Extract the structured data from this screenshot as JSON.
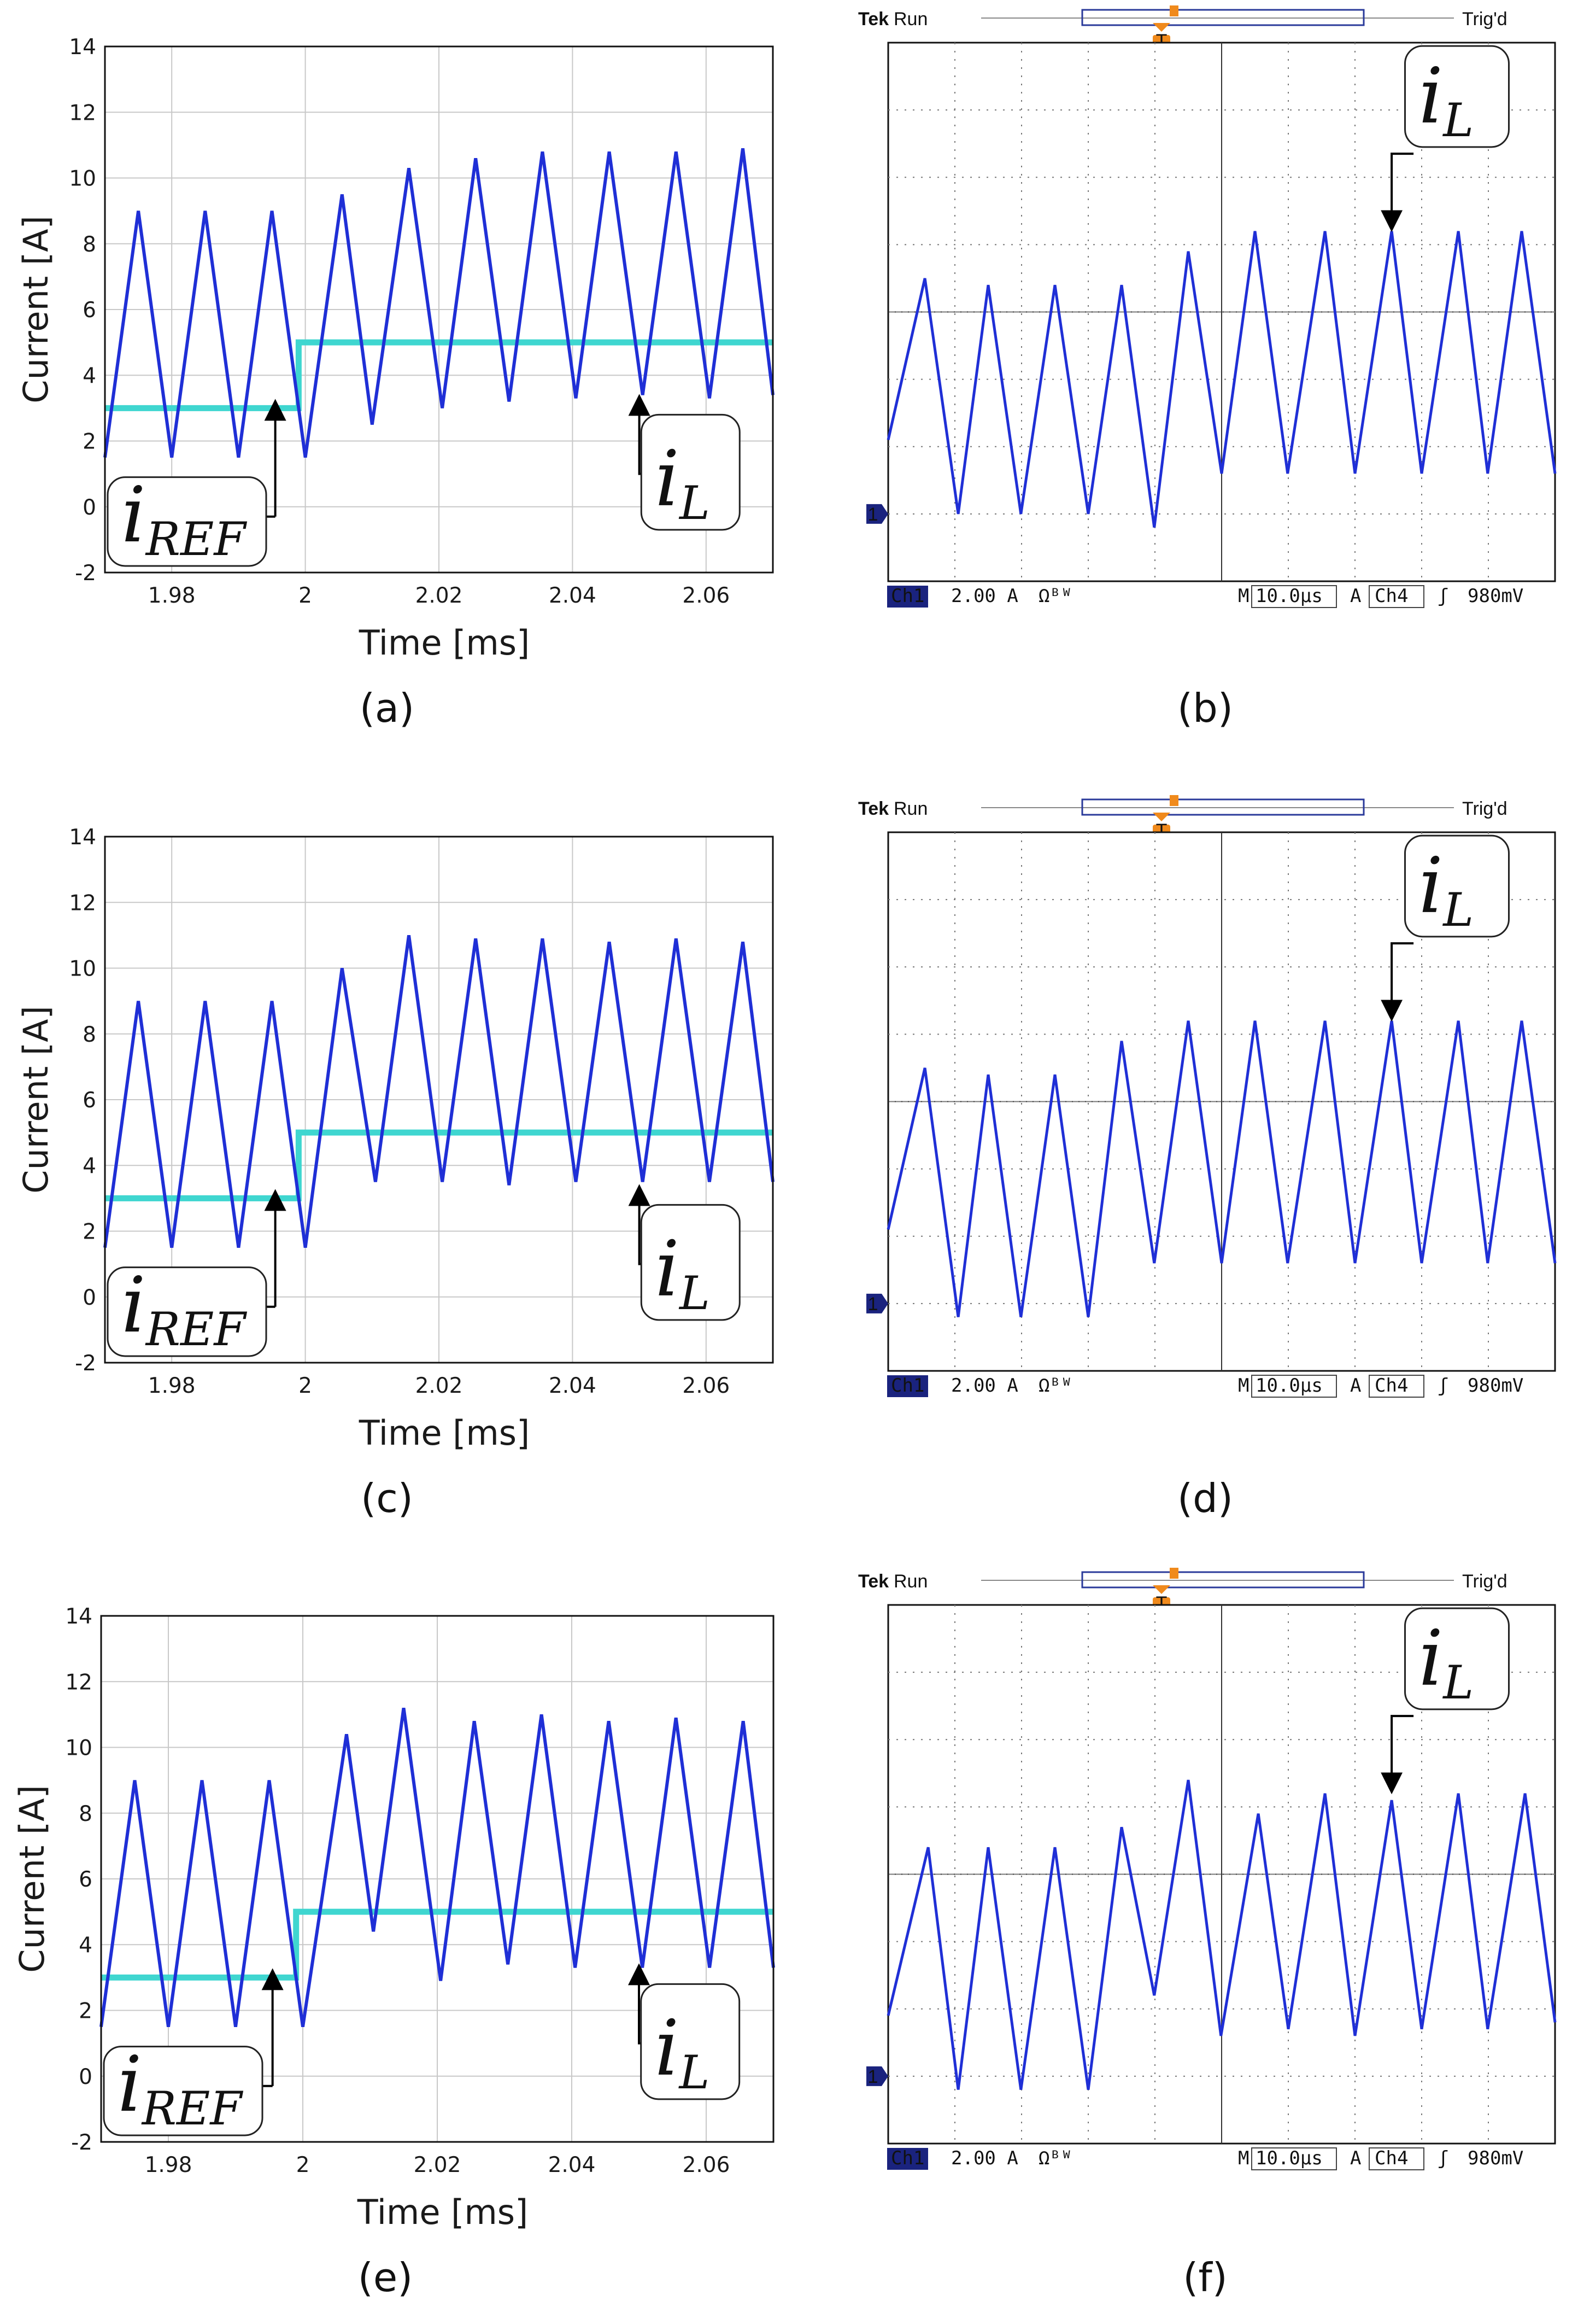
{
  "colors": {
    "il": "#1f2fd6",
    "iref": "#3fd6d0",
    "grid": "#c8c8c8",
    "scope_blue": "#1f2fd6",
    "trigger": "#f08a1c",
    "scope_green": "#1f9a1f"
  },
  "captions": [
    "(a)",
    "(b)",
    "(c)",
    "(d)",
    "(e)",
    "(f)"
  ],
  "labels": {
    "il_main": "i",
    "il_sub": "L",
    "iref_main": "i",
    "iref_sub": "REF"
  },
  "scope": {
    "brand": "Tek",
    "state": "Run",
    "trig_status": "Trig'd",
    "trig_marker": "T",
    "ch1_tag": "Ch1",
    "ch1_scale": "2.00 A",
    "ch1_suffix": "Ωᴮᵂ",
    "timebase_prefix": "M",
    "timebase": "10.0µs",
    "trig_ch_prefix": "A",
    "trig_source": "Ch4",
    "trig_slope": "ʃ",
    "trig_level": "980mV",
    "ground_marker": "1"
  },
  "chart_data": [
    {
      "id": "a",
      "type": "line",
      "xlabel": "Time [ms]",
      "ylabel": "Current [A]",
      "xlim": [
        1.97,
        2.07
      ],
      "ylim": [
        -2,
        14
      ],
      "grid": true,
      "xticks": [
        1.98,
        2,
        2.02,
        2.04,
        2.06
      ],
      "xtick_labels": [
        "1.98",
        "2",
        "2.02",
        "2.04",
        "2.06"
      ],
      "yticks": [
        -2,
        0,
        2,
        4,
        6,
        8,
        10,
        12,
        14
      ],
      "ytick_labels": [
        "-2",
        "0",
        "2",
        "4",
        "6",
        "8",
        "10",
        "12",
        "14"
      ],
      "series": [
        {
          "name": "iL",
          "x": [
            1.97,
            1.975,
            1.98,
            1.985,
            1.99,
            1.995,
            2.0,
            2.0055,
            2.01,
            2.0155,
            2.0205,
            2.0255,
            2.0305,
            2.0355,
            2.0405,
            2.0455,
            2.0505,
            2.0555,
            2.0605,
            2.0655,
            2.07
          ],
          "y": [
            1.5,
            9.0,
            1.5,
            9.0,
            1.5,
            9.0,
            1.5,
            9.5,
            2.5,
            10.3,
            3.0,
            10.6,
            3.2,
            10.8,
            3.3,
            10.8,
            3.4,
            10.8,
            3.3,
            10.9,
            3.4
          ]
        },
        {
          "name": "iREF",
          "x": [
            1.97,
            1.999,
            1.999,
            2.07
          ],
          "y": [
            3,
            3,
            5,
            5
          ]
        }
      ]
    },
    {
      "id": "b",
      "type": "line",
      "instrument": "oscilloscope",
      "ylim_divs": [
        0,
        8
      ],
      "xlim_divs": [
        0,
        10
      ],
      "series": [
        {
          "name": "iL",
          "x": [
            0,
            0.55,
            1.05,
            1.5,
            1.99,
            2.5,
            3.0,
            3.5,
            3.99,
            4.5,
            5.0,
            5.5,
            5.99,
            6.55,
            7.0,
            7.55,
            8.0,
            8.55,
            8.99,
            9.5,
            10.0
          ],
          "y": [
            2.1,
            4.5,
            1.0,
            4.4,
            1.0,
            4.4,
            1.0,
            4.4,
            0.8,
            4.9,
            1.6,
            5.2,
            1.6,
            5.2,
            1.6,
            5.2,
            1.6,
            5.2,
            1.6,
            5.2,
            1.6
          ]
        }
      ]
    },
    {
      "id": "c",
      "type": "line",
      "xlabel": "Time [ms]",
      "ylabel": "Current [A]",
      "xlim": [
        1.97,
        2.07
      ],
      "ylim": [
        -2,
        14
      ],
      "grid": true,
      "xticks": [
        1.98,
        2,
        2.02,
        2.04,
        2.06
      ],
      "xtick_labels": [
        "1.98",
        "2",
        "2.02",
        "2.04",
        "2.06"
      ],
      "yticks": [
        -2,
        0,
        2,
        4,
        6,
        8,
        10,
        12,
        14
      ],
      "ytick_labels": [
        "-2",
        "0",
        "2",
        "4",
        "6",
        "8",
        "10",
        "12",
        "14"
      ],
      "series": [
        {
          "name": "iL",
          "x": [
            1.97,
            1.975,
            1.98,
            1.985,
            1.99,
            1.995,
            2.0,
            2.0055,
            2.0105,
            2.0155,
            2.0205,
            2.0255,
            2.0305,
            2.0355,
            2.0405,
            2.0455,
            2.0505,
            2.0555,
            2.0605,
            2.0655,
            2.07
          ],
          "y": [
            1.5,
            9.0,
            1.5,
            9.0,
            1.5,
            9.0,
            1.5,
            10.0,
            3.5,
            11.0,
            3.5,
            10.9,
            3.4,
            10.9,
            3.5,
            10.8,
            3.5,
            10.9,
            3.5,
            10.8,
            3.5
          ]
        },
        {
          "name": "iREF",
          "x": [
            1.97,
            1.999,
            1.999,
            2.07
          ],
          "y": [
            3,
            3,
            5,
            5
          ]
        }
      ]
    },
    {
      "id": "d",
      "type": "line",
      "instrument": "oscilloscope",
      "ylim_divs": [
        0,
        8
      ],
      "xlim_divs": [
        0,
        10
      ],
      "series": [
        {
          "name": "iL",
          "x": [
            0,
            0.55,
            1.05,
            1.5,
            1.99,
            2.5,
            3.0,
            3.5,
            3.99,
            4.5,
            5.0,
            5.5,
            5.99,
            6.55,
            7.0,
            7.55,
            8.0,
            8.55,
            8.99,
            9.5,
            10.0
          ],
          "y": [
            2.1,
            4.5,
            0.8,
            4.4,
            0.8,
            4.4,
            0.8,
            4.9,
            1.6,
            5.2,
            1.6,
            5.2,
            1.6,
            5.2,
            1.6,
            5.2,
            1.6,
            5.2,
            1.6,
            5.2,
            1.6
          ]
        }
      ]
    },
    {
      "id": "e",
      "type": "line",
      "xlabel": "Time [ms]",
      "ylabel": "Current [A]",
      "xlim": [
        1.97,
        2.07
      ],
      "ylim": [
        -2,
        14
      ],
      "grid": true,
      "xticks": [
        1.98,
        2,
        2.02,
        2.04,
        2.06
      ],
      "xtick_labels": [
        "1.98",
        "2",
        "2.02",
        "2.04",
        "2.06"
      ],
      "yticks": [
        -2,
        0,
        2,
        4,
        6,
        8,
        10,
        12,
        14
      ],
      "ytick_labels": [
        "-2",
        "0",
        "2",
        "4",
        "6",
        "8",
        "10",
        "12",
        "14"
      ],
      "series": [
        {
          "name": "iL",
          "x": [
            1.97,
            1.975,
            1.98,
            1.985,
            1.99,
            1.995,
            2.0,
            2.0065,
            2.0105,
            2.015,
            2.0205,
            2.0255,
            2.0305,
            2.0355,
            2.0405,
            2.0455,
            2.0505,
            2.0555,
            2.0605,
            2.0655,
            2.07
          ],
          "y": [
            1.5,
            9.0,
            1.5,
            9.0,
            1.5,
            9.0,
            1.5,
            10.4,
            4.4,
            11.2,
            2.9,
            10.8,
            3.4,
            11.0,
            3.3,
            10.8,
            3.3,
            10.9,
            3.3,
            10.8,
            3.3
          ]
        },
        {
          "name": "iREF",
          "x": [
            1.97,
            1.999,
            1.999,
            2.07
          ],
          "y": [
            3,
            3,
            5,
            5
          ]
        }
      ]
    },
    {
      "id": "f",
      "type": "line",
      "instrument": "oscilloscope",
      "ylim_divs": [
        0,
        8
      ],
      "xlim_divs": [
        0,
        10
      ],
      "series": [
        {
          "name": "iL",
          "x": [
            0,
            0.6,
            1.05,
            1.5,
            1.99,
            2.5,
            3.0,
            3.5,
            3.99,
            4.5,
            4.99,
            5.55,
            6.0,
            6.55,
            7.0,
            7.55,
            8.0,
            8.55,
            8.99,
            9.55,
            10.0
          ],
          "y": [
            1.9,
            4.4,
            0.8,
            4.4,
            0.8,
            4.4,
            0.8,
            4.7,
            2.2,
            5.4,
            1.6,
            4.9,
            1.7,
            5.2,
            1.6,
            5.1,
            1.7,
            5.2,
            1.7,
            5.2,
            1.8
          ]
        }
      ]
    }
  ]
}
